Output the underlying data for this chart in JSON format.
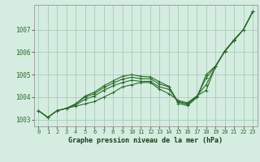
{
  "title": "Graphe pression niveau de la mer (hPa)",
  "bg_color": "#d4ede0",
  "line_color": "#2d6a2d",
  "grid_color": "#a8ccb8",
  "ylim": [
    1002.7,
    1008.1
  ],
  "xlim": [
    -0.5,
    23.5
  ],
  "yticks": [
    1003,
    1004,
    1005,
    1006,
    1007
  ],
  "xticks": [
    0,
    1,
    2,
    3,
    4,
    5,
    6,
    7,
    8,
    9,
    10,
    11,
    12,
    13,
    14,
    15,
    16,
    17,
    18,
    19,
    20,
    21,
    22,
    23
  ],
  "xtick_labels": [
    "0",
    "1",
    "2",
    "3",
    "4",
    "5",
    "6",
    "7",
    "8",
    "9",
    "10",
    "11",
    "12",
    "13",
    "14",
    "15",
    "16",
    "17",
    "18",
    "19",
    "20",
    "21",
    "22",
    "23"
  ],
  "series": [
    [
      1003.4,
      1003.1,
      1003.4,
      1003.5,
      1003.6,
      1003.7,
      1003.8,
      1004.0,
      1004.2,
      1004.45,
      1004.55,
      1004.65,
      1004.65,
      1004.35,
      1004.15,
      1003.85,
      1003.75,
      1004.05,
      1004.3,
      1005.35,
      1006.05,
      1006.55,
      1007.0,
      1007.8
    ],
    [
      1003.4,
      1003.1,
      1003.4,
      1003.5,
      1003.65,
      1003.9,
      1004.05,
      1004.3,
      1004.5,
      1004.65,
      1004.75,
      1004.7,
      1004.7,
      1004.45,
      1004.35,
      1003.8,
      1003.7,
      1004.05,
      1004.55,
      1005.35,
      1006.05,
      1006.55,
      1007.0,
      1007.8
    ],
    [
      1003.4,
      1003.1,
      1003.4,
      1003.5,
      1003.7,
      1004.0,
      1004.15,
      1004.42,
      1004.62,
      1004.8,
      1004.88,
      1004.82,
      1004.82,
      1004.58,
      1004.45,
      1003.78,
      1003.68,
      1004.02,
      1004.85,
      1005.38,
      1006.02,
      1006.52,
      1007.0,
      1007.8
    ],
    [
      1003.4,
      1003.1,
      1003.4,
      1003.5,
      1003.7,
      1004.05,
      1004.22,
      1004.5,
      1004.72,
      1004.92,
      1005.0,
      1004.92,
      1004.9,
      1004.68,
      1004.48,
      1003.72,
      1003.62,
      1003.98,
      1005.0,
      1005.38,
      1006.05,
      1006.52,
      1007.0,
      1007.8
    ]
  ]
}
